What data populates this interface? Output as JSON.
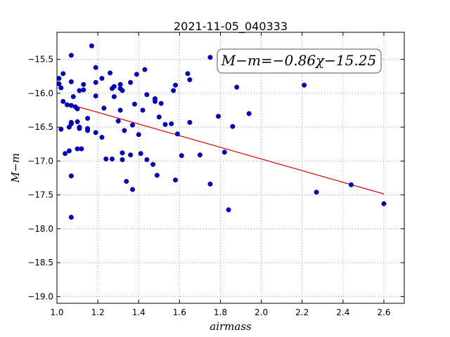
{
  "chart_data": {
    "type": "scatter",
    "title": "2021-11-05_040333",
    "xlabel": "airmass",
    "ylabel": "M−m",
    "xlim": [
      1.0,
      2.7
    ],
    "ylim": [
      -19.1,
      -15.1
    ],
    "x_ticks": [
      1.0,
      1.2,
      1.4,
      1.6,
      1.8,
      2.0,
      2.2,
      2.4,
      2.6
    ],
    "x_tick_labels": [
      "1.0",
      "1.2",
      "1.4",
      "1.6",
      "1.8",
      "2.0",
      "2.2",
      "2.4",
      "2.6"
    ],
    "y_ticks": [
      -15.5,
      -16.0,
      -16.5,
      -17.0,
      -17.5,
      -18.0,
      -18.5,
      -19.0
    ],
    "y_tick_labels": [
      "−15.5",
      "−16.0",
      "−16.5",
      "−17.0",
      "−17.5",
      "−18.0",
      "−18.5",
      "−19.0"
    ],
    "grid": true,
    "annotation": "M−m=−0.86χ−15.25",
    "fit": {
      "slope": -0.86,
      "intercept": -15.25,
      "x_range": [
        1.02,
        2.6
      ],
      "color": "#dd0000"
    },
    "point_color": "#0000cc",
    "points": [
      [
        1.01,
        -15.78
      ],
      [
        1.01,
        -15.86
      ],
      [
        1.02,
        -15.92
      ],
      [
        1.03,
        -15.71
      ],
      [
        1.03,
        -16.12
      ],
      [
        1.02,
        -16.53
      ],
      [
        1.04,
        -16.89
      ],
      [
        1.06,
        -16.85
      ],
      [
        1.05,
        -16.17
      ],
      [
        1.07,
        -16.18
      ],
      [
        1.07,
        -15.44
      ],
      [
        1.07,
        -15.83
      ],
      [
        1.08,
        -16.05
      ],
      [
        1.09,
        -16.2
      ],
      [
        1.1,
        -16.23
      ],
      [
        1.06,
        -16.5
      ],
      [
        1.07,
        -16.45
      ],
      [
        1.07,
        -16.43
      ],
      [
        1.1,
        -16.42
      ],
      [
        1.11,
        -16.52
      ],
      [
        1.11,
        -16.5
      ],
      [
        1.1,
        -16.82
      ],
      [
        1.12,
        -16.82
      ],
      [
        1.07,
        -17.22
      ],
      [
        1.07,
        -17.83
      ],
      [
        1.11,
        -15.96
      ],
      [
        1.13,
        -15.87
      ],
      [
        1.13,
        -15.95
      ],
      [
        1.15,
        -16.37
      ],
      [
        1.15,
        -16.52
      ],
      [
        1.15,
        -16.55
      ],
      [
        1.17,
        -15.3
      ],
      [
        1.19,
        -15.62
      ],
      [
        1.19,
        -15.84
      ],
      [
        1.19,
        -16.04
      ],
      [
        1.19,
        -16.58
      ],
      [
        1.22,
        -16.65
      ],
      [
        1.22,
        -15.78
      ],
      [
        1.23,
        -16.22
      ],
      [
        1.24,
        -16.97
      ],
      [
        1.26,
        -15.7
      ],
      [
        1.27,
        -15.93
      ],
      [
        1.28,
        -15.9
      ],
      [
        1.28,
        -16.05
      ],
      [
        1.27,
        -16.97
      ],
      [
        1.3,
        -16.41
      ],
      [
        1.31,
        -16.25
      ],
      [
        1.31,
        -15.87
      ],
      [
        1.31,
        -15.93
      ],
      [
        1.32,
        -15.96
      ],
      [
        1.32,
        -16.88
      ],
      [
        1.32,
        -16.98
      ],
      [
        1.33,
        -16.55
      ],
      [
        1.34,
        -17.3
      ],
      [
        1.36,
        -15.84
      ],
      [
        1.36,
        -16.91
      ],
      [
        1.37,
        -16.47
      ],
      [
        1.37,
        -17.42
      ],
      [
        1.38,
        -16.16
      ],
      [
        1.39,
        -15.72
      ],
      [
        1.4,
        -16.61
      ],
      [
        1.41,
        -16.89
      ],
      [
        1.42,
        -16.25
      ],
      [
        1.43,
        -15.65
      ],
      [
        1.44,
        -16.02
      ],
      [
        1.44,
        -16.98
      ],
      [
        1.47,
        -17.05
      ],
      [
        1.48,
        -16.08
      ],
      [
        1.48,
        -16.12
      ],
      [
        1.49,
        -17.21
      ],
      [
        1.5,
        -16.35
      ],
      [
        1.51,
        -16.15
      ],
      [
        1.53,
        -16.46
      ],
      [
        1.56,
        -16.45
      ],
      [
        1.57,
        -15.96
      ],
      [
        1.58,
        -15.88
      ],
      [
        1.58,
        -17.28
      ],
      [
        1.59,
        -16.6
      ],
      [
        1.61,
        -16.92
      ],
      [
        1.64,
        -15.71
      ],
      [
        1.65,
        -15.8
      ],
      [
        1.65,
        -16.43
      ],
      [
        1.7,
        -16.91
      ],
      [
        1.75,
        -15.47
      ],
      [
        1.75,
        -17.34
      ],
      [
        1.79,
        -16.34
      ],
      [
        1.82,
        -16.87
      ],
      [
        1.84,
        -17.72
      ],
      [
        1.86,
        -16.49
      ],
      [
        1.88,
        -15.91
      ],
      [
        1.94,
        -16.3
      ],
      [
        2.21,
        -15.88
      ],
      [
        2.27,
        -17.46
      ],
      [
        2.44,
        -17.35
      ],
      [
        2.6,
        -17.63
      ]
    ]
  }
}
